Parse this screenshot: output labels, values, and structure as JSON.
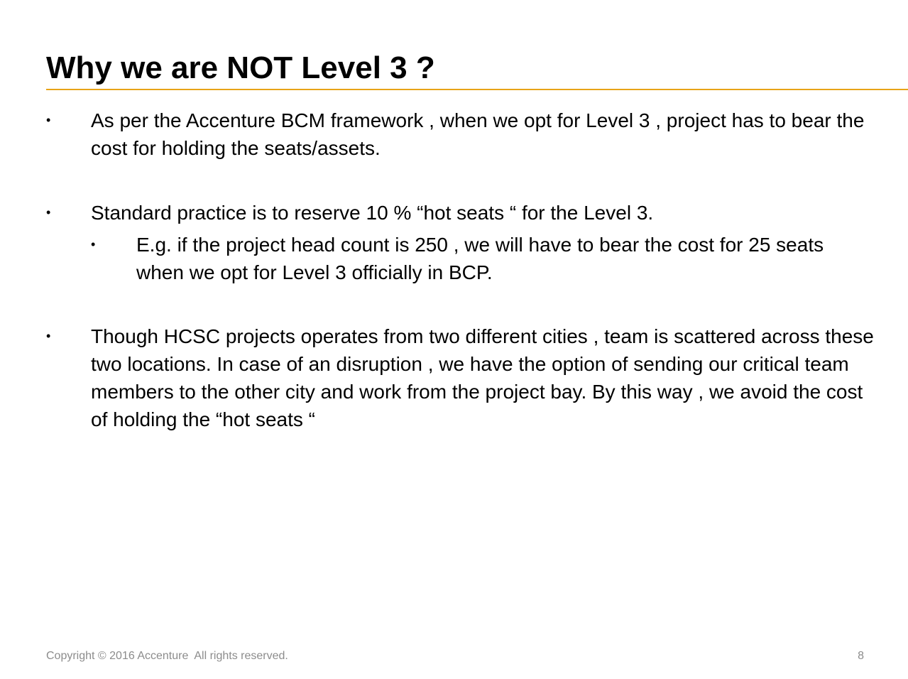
{
  "slide": {
    "title": "Why we are NOT Level 3 ?",
    "accent_color": "#e8a317",
    "bullet_symbol": "•",
    "bullets": [
      {
        "level": 1,
        "text": "As per the Accenture BCM framework , when we opt for Level 3 , project has to bear the cost for holding the seats/assets."
      },
      {
        "level": 1,
        "text": "Standard practice is to reserve 10 % “hot seats “ for the Level 3."
      },
      {
        "level": 2,
        "text": "E.g. if the project head count is 250 , we will have to bear the cost for 25 seats when we opt for Level 3 officially in BCP."
      },
      {
        "level": 1,
        "text": "Though HCSC projects operates from two different cities , team is scattered across these two locations. In case of an disruption , we have the option of sending our critical team members to the other city and work from the project bay. By this way , we avoid the cost of holding the “hot seats “"
      }
    ]
  },
  "footer": {
    "copyright": "Copyright © 2016 Accenture  All rights reserved.",
    "page_number": "8"
  }
}
